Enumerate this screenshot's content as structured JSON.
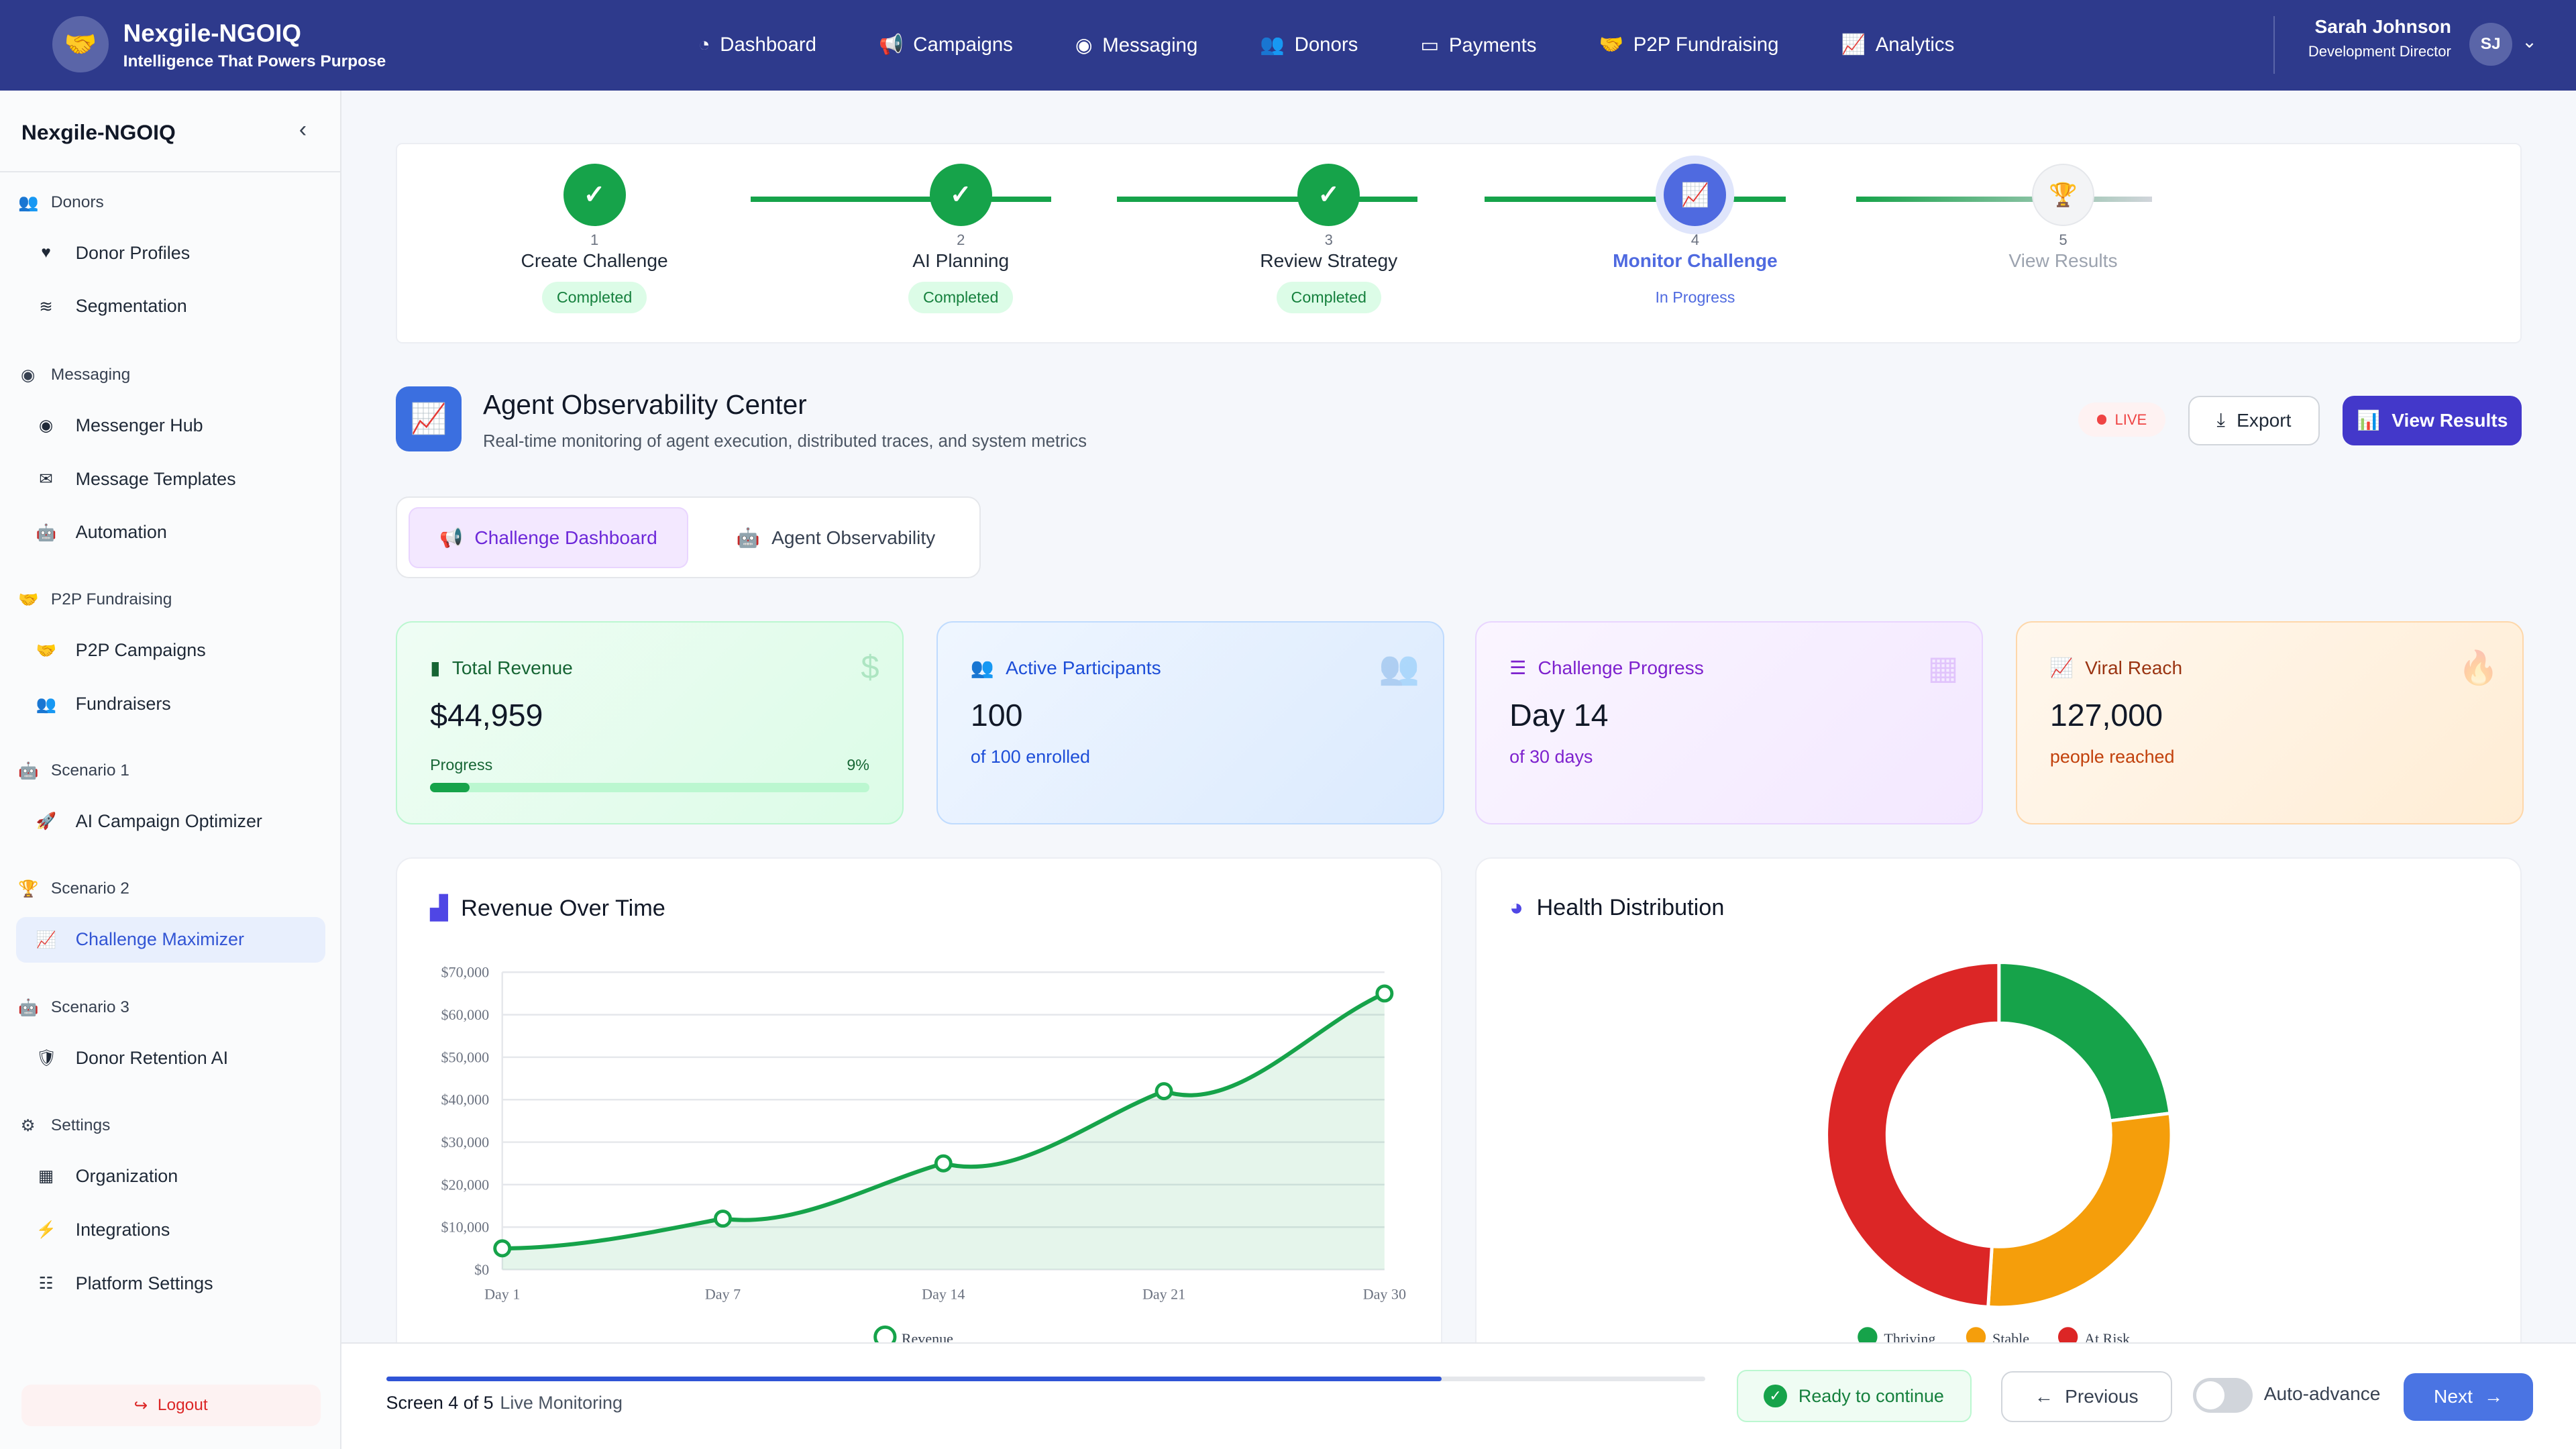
{
  "header": {
    "brand": "Nexgile-NGOIQ",
    "tagline": "Intelligence That Powers Purpose",
    "nav": [
      {
        "label": "Dashboard",
        "icon": "gauge-icon"
      },
      {
        "label": "Campaigns",
        "icon": "megaphone-icon"
      },
      {
        "label": "Messaging",
        "icon": "messenger-icon"
      },
      {
        "label": "Donors",
        "icon": "users-icon"
      },
      {
        "label": "Payments",
        "icon": "credit-card-icon"
      },
      {
        "label": "P2P Fundraising",
        "icon": "handshake-icon"
      },
      {
        "label": "Analytics",
        "icon": "chart-line-icon"
      }
    ],
    "user": {
      "name": "Sarah Johnson",
      "role": "Development Director",
      "initials": "SJ"
    }
  },
  "sidebar": {
    "title": "Nexgile-NGOIQ",
    "sections": [
      {
        "label": "Donors",
        "items": [
          "Donor Profiles",
          "Segmentation"
        ]
      },
      {
        "label": "Messaging",
        "items": [
          "Messenger Hub",
          "Message Templates",
          "Automation"
        ]
      },
      {
        "label": "P2P Fundraising",
        "items": [
          "P2P Campaigns",
          "Fundraisers"
        ]
      },
      {
        "label": "Scenario 1",
        "items": [
          "AI Campaign Optimizer"
        ]
      },
      {
        "label": "Scenario 2",
        "items": [
          "Challenge Maximizer"
        ]
      },
      {
        "label": "Scenario 3",
        "items": [
          "Donor Retention AI"
        ]
      },
      {
        "label": "Settings",
        "items": [
          "Organization",
          "Integrations",
          "Platform Settings"
        ]
      }
    ],
    "active_item": "Challenge Maximizer",
    "logout": "Logout"
  },
  "stepper": [
    {
      "num": "1",
      "label": "Create Challenge",
      "status": "Completed"
    },
    {
      "num": "2",
      "label": "AI Planning",
      "status": "Completed"
    },
    {
      "num": "3",
      "label": "Review Strategy",
      "status": "Completed"
    },
    {
      "num": "4",
      "label": "Monitor Challenge",
      "status": "In Progress"
    },
    {
      "num": "5",
      "label": "View Results",
      "status": ""
    }
  ],
  "page": {
    "title": "Agent Observability Center",
    "subtitle": "Real-time monitoring of agent execution, distributed traces, and system metrics",
    "live": "LIVE",
    "export": "Export",
    "view_results": "View Results",
    "tabs": [
      "Challenge Dashboard",
      "Agent Observability"
    ],
    "active_tab": "Challenge Dashboard"
  },
  "stats": [
    {
      "title": "Total Revenue",
      "value": "$44,959",
      "progress_label": "Progress",
      "progress_pct": "9%",
      "progress": 9,
      "color": "#15803d"
    },
    {
      "title": "Active Participants",
      "value": "100",
      "sub": "of 100 enrolled",
      "color": "#1d4ed8"
    },
    {
      "title": "Challenge Progress",
      "value": "Day 14",
      "sub": "of 30 days",
      "color": "#7e22ce"
    },
    {
      "title": "Viral Reach",
      "value": "127,000",
      "sub": "people reached",
      "color": "#c2410c"
    }
  ],
  "chart_data": [
    {
      "type": "area",
      "title": "Revenue Over Time",
      "categories": [
        "Day 1",
        "Day 7",
        "Day 14",
        "Day 21",
        "Day 30"
      ],
      "series": [
        {
          "name": "Revenue",
          "values": [
            5000,
            12000,
            25000,
            42000,
            65000
          ],
          "color": "#16a34a"
        }
      ],
      "ylim": [
        0,
        70000
      ],
      "yticks": [
        "$0",
        "$10,000",
        "$20,000",
        "$30,000",
        "$40,000",
        "$50,000",
        "$60,000",
        "$70,000"
      ],
      "grid": true,
      "legend": "bottom"
    },
    {
      "type": "pie",
      "title": "Health Distribution",
      "categories": [
        "Thriving",
        "Stable",
        "At Risk"
      ],
      "values": [
        23,
        28,
        49
      ],
      "colors": [
        "#16a34a",
        "#f59e0b",
        "#dc2626"
      ],
      "legend": "bottom"
    }
  ],
  "footer": {
    "screen": "Screen 4 of 5",
    "screen_name": "Live Monitoring",
    "progress": 80,
    "ready": "Ready to continue",
    "previous": "Previous",
    "auto_advance": "Auto-advance",
    "next": "Next"
  }
}
